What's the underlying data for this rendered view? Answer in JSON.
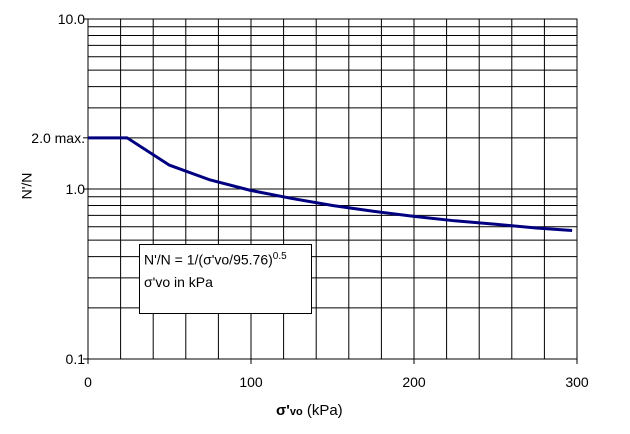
{
  "chart_data": {
    "type": "line",
    "title": "",
    "xlabel": {
      "symbol": "σ'",
      "sub": "vo",
      "unit": " (kPa)"
    },
    "ylabel": "N'/N",
    "xlim": [
      0,
      300
    ],
    "ylim": [
      0.1,
      10
    ],
    "yscale": "log",
    "x_ticks": [
      "0",
      "100",
      "200",
      "300"
    ],
    "x_tick_values": [
      0,
      100,
      200,
      300
    ],
    "y_ticks": [
      "10.0",
      "2.0 max.",
      "1.0",
      "0.1"
    ],
    "y_tick_values": [
      10,
      2,
      1,
      0.1
    ],
    "x_grid_step": 20,
    "grid": true,
    "series": [
      {
        "name": "N'/N",
        "color": "#000080",
        "x": [
          0,
          24,
          50,
          75,
          100,
          125,
          150,
          175,
          200,
          225,
          250,
          275,
          297
        ],
        "y": [
          2.0,
          2.0,
          1.38,
          1.13,
          0.98,
          0.88,
          0.8,
          0.74,
          0.69,
          0.65,
          0.62,
          0.59,
          0.57
        ]
      }
    ],
    "annotation": {
      "line1": "N'/N = 1/(σ'vo/95.76)",
      "line1_exp": "0.5",
      "line2": "σ'vo in kPa"
    }
  }
}
